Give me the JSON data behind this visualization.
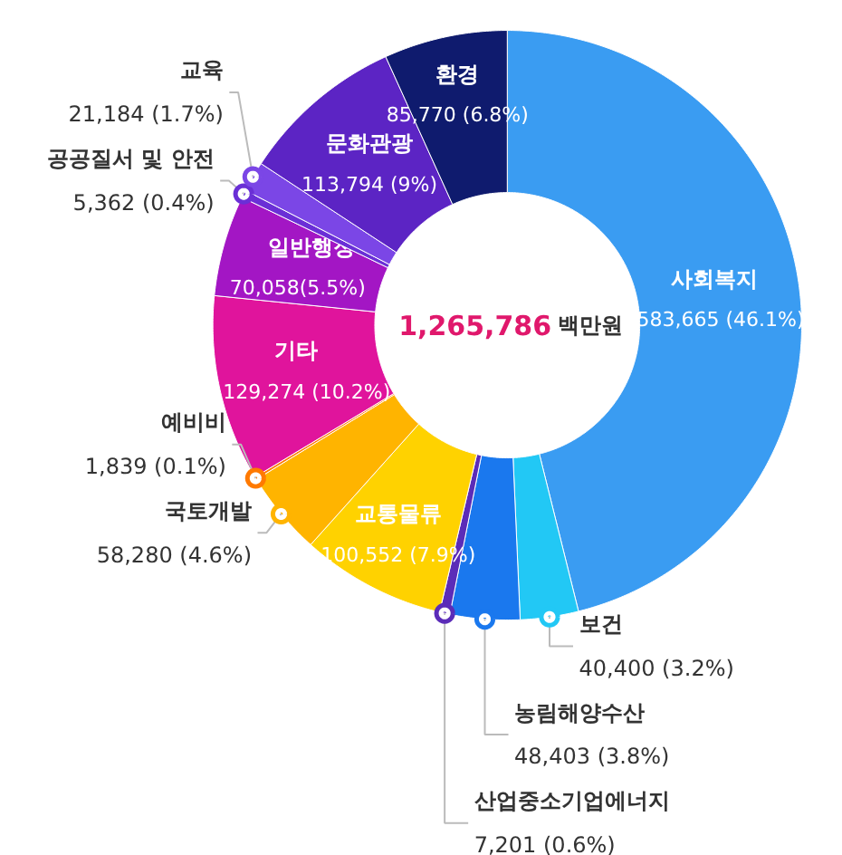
{
  "chart_data": {
    "type": "donut",
    "categories": [
      "사회복지",
      "보건",
      "농림해양수산",
      "산업중소기업에너지",
      "교통물류",
      "국토개발",
      "예비비",
      "기타",
      "일반행정",
      "공공질서 및 안전",
      "교육",
      "문화관광",
      "환경"
    ],
    "values": [
      583665,
      40400,
      48403,
      7201,
      100552,
      58280,
      1839,
      129274,
      70058,
      5362,
      21184,
      113794,
      85770
    ],
    "colors": [
      "#3a9cf2",
      "#22c8f5",
      "#1a78ee",
      "#5b2cb8",
      "#ffd200",
      "#ffb400",
      "#ff7a00",
      "#e0149c",
      "#a316c4",
      "#6a2fd6",
      "#7b46e6",
      "#5c24c4",
      "#0f1b6e"
    ],
    "value_labels": [
      "583,665 (46.1%)",
      "40,400 (3.2%)",
      "48,403 (3.8%)",
      "7,201 (0.6%)",
      "100,552 (7.9%)",
      "58,280 (4.6%)",
      "1,839 (0.1%)",
      "129,274 (10.2%)",
      "70,058(5.5%)",
      "5,362 (0.4%)",
      "21,184 (1.7%)",
      "113,794 (9%)",
      "85,770 (6.8%)"
    ],
    "annotations": [
      "1,265,786",
      "백만원"
    ]
  }
}
